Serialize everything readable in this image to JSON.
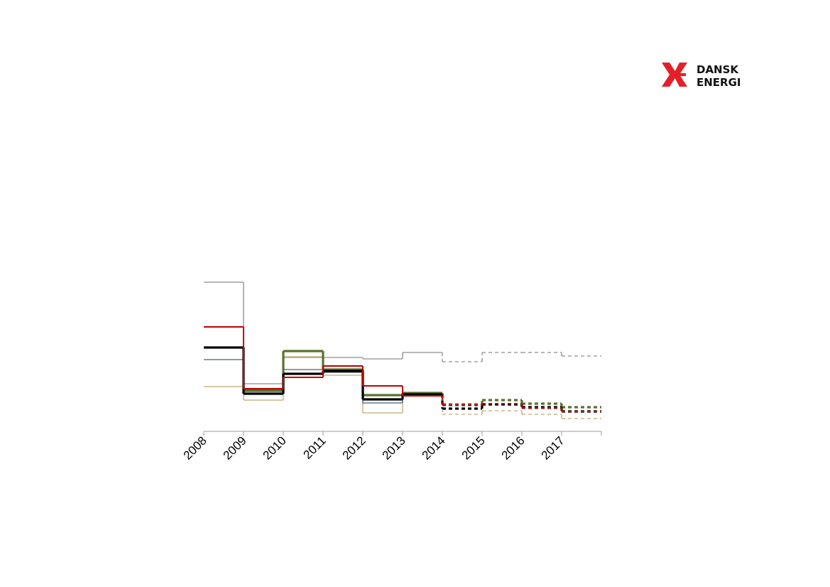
{
  "logo": {
    "line1": "DANSK",
    "line2": "ENERGI"
  },
  "chart_data": {
    "type": "step",
    "x": [
      2008,
      2009,
      2010,
      2011,
      2012,
      2013,
      2014,
      2015,
      2016,
      2017
    ],
    "xlim": [
      2008,
      2018
    ],
    "xticks": [
      2008,
      2009,
      2010,
      2011,
      2012,
      2013,
      2014,
      2015,
      2016,
      2017
    ],
    "ylim": [
      0,
      210
    ],
    "dashed_from": 2014,
    "series": [
      {
        "color": "#a0a0a0",
        "width": 1.6,
        "values": [
          210,
          67,
          104,
          104,
          102,
          111,
          98,
          111,
          111,
          106
        ]
      },
      {
        "color": "#c0a870",
        "width": 1.3,
        "values": [
          63,
          44,
          105,
          79,
          26,
          50,
          24,
          29,
          24,
          18
        ]
      },
      {
        "color": "#4a6070",
        "width": 1.3,
        "values": [
          101,
          59,
          87,
          83,
          40,
          51,
          36,
          37,
          32,
          29
        ]
      },
      {
        "color": "#5a7030",
        "width": 3.2,
        "values": [
          null,
          57,
          113,
          87,
          51,
          54,
          38,
          44,
          39,
          34
        ]
      },
      {
        "color": "#000000",
        "width": 3.2,
        "values": [
          118,
          53,
          81,
          85,
          45,
          52,
          32,
          38,
          34,
          28
        ]
      },
      {
        "color": "#c00000",
        "width": 2,
        "values": [
          147,
          60,
          76,
          92,
          64,
          50,
          37,
          39,
          33,
          28
        ]
      }
    ]
  }
}
